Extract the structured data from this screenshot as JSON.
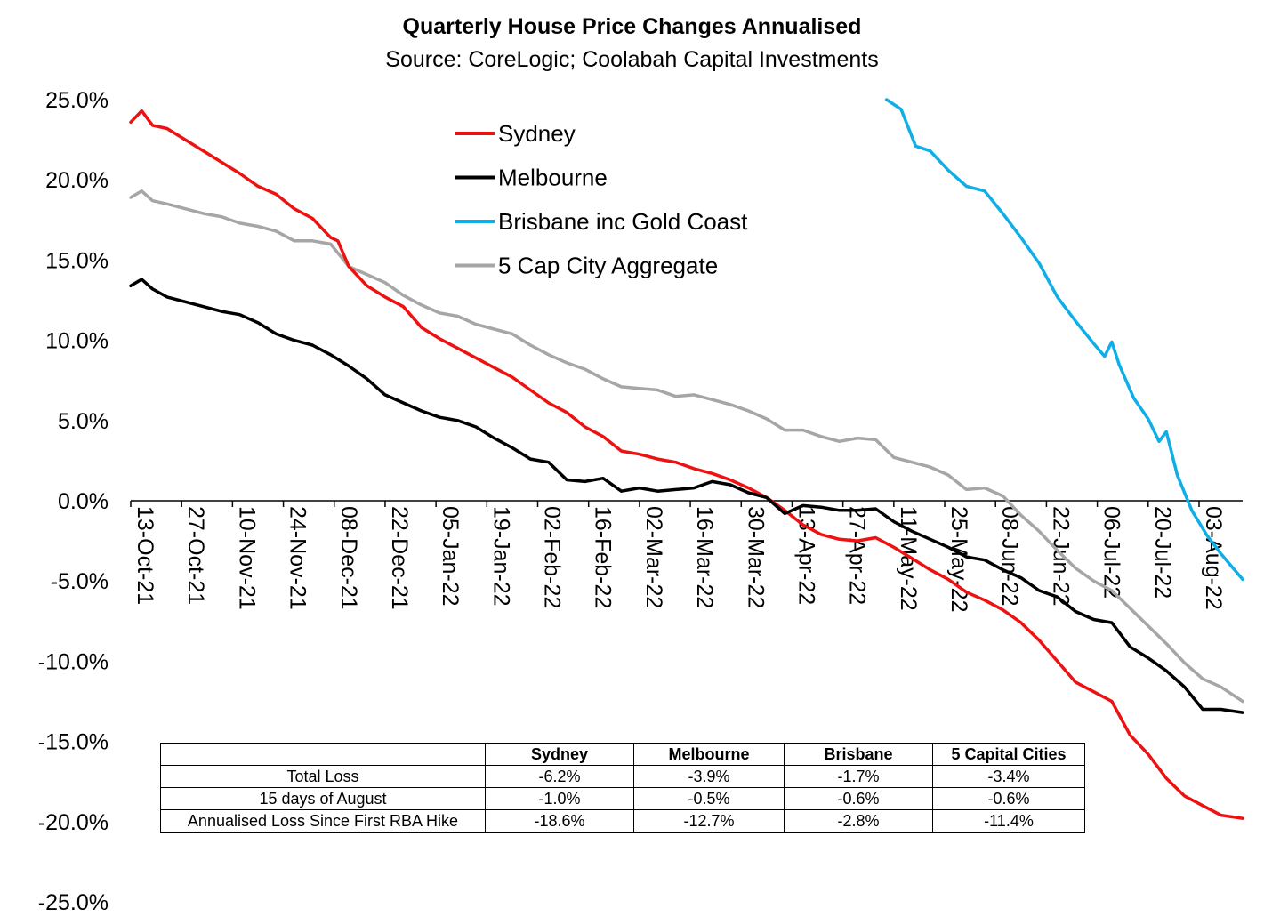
{
  "chart_data": {
    "type": "line",
    "title": "Quarterly House Price Changes Annualised",
    "subtitle": "Source: CoreLogic; Coolabah Capital Investments",
    "xlabel": "",
    "ylabel": "",
    "ylim": [
      -25,
      25
    ],
    "yticks": [
      "25.0%",
      "20.0%",
      "15.0%",
      "10.0%",
      "5.0%",
      "0.0%",
      "-5.0%",
      "-10.0%",
      "-15.0%",
      "-20.0%",
      "-25.0%"
    ],
    "ytick_values": [
      25,
      20,
      15,
      10,
      5,
      0,
      -5,
      -10,
      -15,
      -20,
      -25
    ],
    "x_start": "2021-10-13",
    "x_end": "2022-08-15",
    "xticks": [
      "13-Oct-21",
      "27-Oct-21",
      "10-Nov-21",
      "24-Nov-21",
      "08-Dec-21",
      "22-Dec-21",
      "05-Jan-22",
      "19-Jan-22",
      "02-Feb-22",
      "16-Feb-22",
      "02-Mar-22",
      "16-Mar-22",
      "30-Mar-22",
      "13-Apr-22",
      "27-Apr-22",
      "11-May-22",
      "25-May-22",
      "08-Jun-22",
      "22-Jun-22",
      "06-Jul-22",
      "20-Jul-22",
      "03-Aug-22"
    ],
    "xtick_days": [
      0,
      14,
      28,
      42,
      56,
      70,
      84,
      98,
      112,
      126,
      140,
      154,
      168,
      182,
      196,
      210,
      224,
      238,
      252,
      266,
      280,
      294
    ],
    "legend": "top-center",
    "series": [
      {
        "name": "Sydney",
        "color": "#ee1111",
        "points": [
          [
            0,
            23.6
          ],
          [
            3,
            24.3
          ],
          [
            6,
            23.4
          ],
          [
            10,
            23.2
          ],
          [
            15,
            22.5
          ],
          [
            20,
            21.8
          ],
          [
            25,
            21.1
          ],
          [
            30,
            20.4
          ],
          [
            35,
            19.6
          ],
          [
            40,
            19.1
          ],
          [
            45,
            18.2
          ],
          [
            50,
            17.6
          ],
          [
            55,
            16.4
          ],
          [
            57,
            16.2
          ],
          [
            60,
            14.6
          ],
          [
            65,
            13.4
          ],
          [
            70,
            12.7
          ],
          [
            75,
            12.1
          ],
          [
            80,
            10.8
          ],
          [
            85,
            10.1
          ],
          [
            90,
            9.5
          ],
          [
            95,
            8.9
          ],
          [
            100,
            8.3
          ],
          [
            105,
            7.7
          ],
          [
            110,
            6.9
          ],
          [
            115,
            6.1
          ],
          [
            120,
            5.5
          ],
          [
            125,
            4.6
          ],
          [
            130,
            4.0
          ],
          [
            135,
            3.1
          ],
          [
            140,
            2.9
          ],
          [
            145,
            2.6
          ],
          [
            150,
            2.4
          ],
          [
            155,
            2.0
          ],
          [
            160,
            1.7
          ],
          [
            165,
            1.3
          ],
          [
            170,
            0.8
          ],
          [
            175,
            0.2
          ],
          [
            180,
            -0.6
          ],
          [
            185,
            -1.5
          ],
          [
            190,
            -2.1
          ],
          [
            195,
            -2.4
          ],
          [
            200,
            -2.5
          ],
          [
            205,
            -2.3
          ],
          [
            210,
            -2.9
          ],
          [
            215,
            -3.6
          ],
          [
            220,
            -4.3
          ],
          [
            225,
            -4.9
          ],
          [
            230,
            -5.7
          ],
          [
            235,
            -6.2
          ],
          [
            240,
            -6.8
          ],
          [
            245,
            -7.6
          ],
          [
            250,
            -8.7
          ],
          [
            255,
            -10.0
          ],
          [
            260,
            -11.3
          ],
          [
            265,
            -11.9
          ],
          [
            270,
            -12.5
          ],
          [
            275,
            -14.6
          ],
          [
            280,
            -15.8
          ],
          [
            285,
            -17.3
          ],
          [
            290,
            -18.4
          ],
          [
            295,
            -19.0
          ],
          [
            300,
            -19.6
          ],
          [
            306,
            -19.8
          ]
        ]
      },
      {
        "name": "Melbourne",
        "color": "#000000",
        "points": [
          [
            0,
            13.4
          ],
          [
            3,
            13.8
          ],
          [
            6,
            13.2
          ],
          [
            10,
            12.7
          ],
          [
            15,
            12.4
          ],
          [
            20,
            12.1
          ],
          [
            25,
            11.8
          ],
          [
            30,
            11.6
          ],
          [
            35,
            11.1
          ],
          [
            40,
            10.4
          ],
          [
            45,
            10.0
          ],
          [
            50,
            9.7
          ],
          [
            55,
            9.1
          ],
          [
            60,
            8.4
          ],
          [
            65,
            7.6
          ],
          [
            70,
            6.6
          ],
          [
            75,
            6.1
          ],
          [
            80,
            5.6
          ],
          [
            85,
            5.2
          ],
          [
            90,
            5.0
          ],
          [
            95,
            4.6
          ],
          [
            100,
            3.9
          ],
          [
            105,
            3.3
          ],
          [
            110,
            2.6
          ],
          [
            115,
            2.4
          ],
          [
            120,
            1.3
          ],
          [
            125,
            1.2
          ],
          [
            130,
            1.4
          ],
          [
            135,
            0.6
          ],
          [
            140,
            0.8
          ],
          [
            145,
            0.6
          ],
          [
            150,
            0.7
          ],
          [
            155,
            0.8
          ],
          [
            160,
            1.2
          ],
          [
            165,
            1.0
          ],
          [
            170,
            0.5
          ],
          [
            175,
            0.2
          ],
          [
            180,
            -0.8
          ],
          [
            185,
            -0.3
          ],
          [
            190,
            -0.4
          ],
          [
            195,
            -0.6
          ],
          [
            200,
            -0.6
          ],
          [
            205,
            -0.5
          ],
          [
            210,
            -1.3
          ],
          [
            215,
            -1.9
          ],
          [
            220,
            -2.4
          ],
          [
            225,
            -2.9
          ],
          [
            230,
            -3.5
          ],
          [
            235,
            -3.7
          ],
          [
            240,
            -4.3
          ],
          [
            245,
            -4.8
          ],
          [
            250,
            -5.6
          ],
          [
            255,
            -6.0
          ],
          [
            260,
            -6.9
          ],
          [
            265,
            -7.4
          ],
          [
            270,
            -7.6
          ],
          [
            275,
            -9.1
          ],
          [
            280,
            -9.8
          ],
          [
            285,
            -10.6
          ],
          [
            290,
            -11.6
          ],
          [
            295,
            -13.0
          ],
          [
            300,
            -13.0
          ],
          [
            306,
            -13.2
          ]
        ]
      },
      {
        "name": "Brisbane inc Gold Coast",
        "color": "#10aee6",
        "points": [
          [
            208,
            25.0
          ],
          [
            212,
            24.4
          ],
          [
            216,
            22.1
          ],
          [
            220,
            21.8
          ],
          [
            225,
            20.6
          ],
          [
            230,
            19.6
          ],
          [
            235,
            19.3
          ],
          [
            240,
            17.9
          ],
          [
            245,
            16.4
          ],
          [
            250,
            14.8
          ],
          [
            255,
            12.7
          ],
          [
            260,
            11.2
          ],
          [
            265,
            9.8
          ],
          [
            268,
            9.0
          ],
          [
            270,
            9.9
          ],
          [
            272,
            8.5
          ],
          [
            276,
            6.4
          ],
          [
            280,
            5.1
          ],
          [
            283,
            3.7
          ],
          [
            285,
            4.3
          ],
          [
            288,
            1.6
          ],
          [
            292,
            -0.6
          ],
          [
            296,
            -2.1
          ],
          [
            300,
            -3.3
          ],
          [
            303,
            -4.1
          ],
          [
            306,
            -4.9
          ]
        ]
      },
      {
        "name": "5 Cap City Aggregate",
        "color": "#a6a6a6",
        "points": [
          [
            0,
            18.9
          ],
          [
            3,
            19.3
          ],
          [
            6,
            18.7
          ],
          [
            10,
            18.5
          ],
          [
            15,
            18.2
          ],
          [
            20,
            17.9
          ],
          [
            25,
            17.7
          ],
          [
            30,
            17.3
          ],
          [
            35,
            17.1
          ],
          [
            40,
            16.8
          ],
          [
            45,
            16.2
          ],
          [
            50,
            16.2
          ],
          [
            55,
            16.0
          ],
          [
            60,
            14.6
          ],
          [
            65,
            14.1
          ],
          [
            70,
            13.6
          ],
          [
            75,
            12.8
          ],
          [
            80,
            12.2
          ],
          [
            85,
            11.7
          ],
          [
            90,
            11.5
          ],
          [
            95,
            11.0
          ],
          [
            100,
            10.7
          ],
          [
            105,
            10.4
          ],
          [
            110,
            9.7
          ],
          [
            115,
            9.1
          ],
          [
            120,
            8.6
          ],
          [
            125,
            8.2
          ],
          [
            130,
            7.6
          ],
          [
            135,
            7.1
          ],
          [
            140,
            7.0
          ],
          [
            145,
            6.9
          ],
          [
            150,
            6.5
          ],
          [
            155,
            6.6
          ],
          [
            160,
            6.3
          ],
          [
            165,
            6.0
          ],
          [
            170,
            5.6
          ],
          [
            175,
            5.1
          ],
          [
            180,
            4.4
          ],
          [
            185,
            4.4
          ],
          [
            190,
            4.0
          ],
          [
            195,
            3.7
          ],
          [
            200,
            3.9
          ],
          [
            205,
            3.8
          ],
          [
            210,
            2.7
          ],
          [
            215,
            2.4
          ],
          [
            220,
            2.1
          ],
          [
            225,
            1.6
          ],
          [
            230,
            0.7
          ],
          [
            235,
            0.8
          ],
          [
            240,
            0.3
          ],
          [
            245,
            -0.9
          ],
          [
            250,
            -1.9
          ],
          [
            255,
            -3.1
          ],
          [
            260,
            -4.2
          ],
          [
            265,
            -5.0
          ],
          [
            270,
            -5.6
          ],
          [
            275,
            -6.7
          ],
          [
            280,
            -7.8
          ],
          [
            285,
            -8.9
          ],
          [
            290,
            -10.1
          ],
          [
            295,
            -11.1
          ],
          [
            300,
            -11.6
          ],
          [
            306,
            -12.5
          ]
        ]
      }
    ]
  },
  "table": {
    "headers": [
      "",
      "Sydney",
      "Melbourne",
      "Brisbane",
      "5 Capital Cities"
    ],
    "rows": [
      {
        "label": "Total Loss",
        "values": [
          "-6.2%",
          "-3.9%",
          "-1.7%",
          "-3.4%"
        ]
      },
      {
        "label": "15 days of August",
        "values": [
          "-1.0%",
          "-0.5%",
          "-0.6%",
          "-0.6%"
        ]
      },
      {
        "label": "Annualised Loss Since First RBA Hike",
        "values": [
          "-18.6%",
          "-12.7%",
          "-2.8%",
          "-11.4%"
        ]
      }
    ]
  }
}
